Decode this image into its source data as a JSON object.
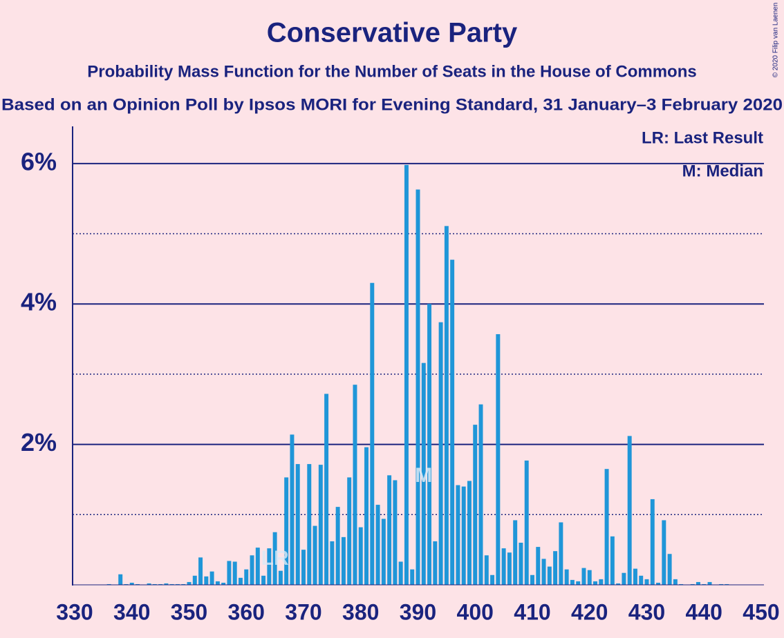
{
  "chart_data": {
    "type": "bar",
    "title": "Conservative Party",
    "subtitle": "Probability Mass Function for the Number of Seats in the House of Commons",
    "subtitle2": "Based on an Opinion Poll by Ipsos MORI for Evening Standard, 31 January–3 February 2020",
    "credit": "© 2020 Filip van Laenen",
    "legend": [
      "LR: Last Result",
      "M: Median"
    ],
    "last_result": {
      "x": 365,
      "label": "LR"
    },
    "median": {
      "x": 391,
      "label": "M"
    },
    "color": "#1f96d8",
    "x": [
      330,
      331,
      332,
      333,
      334,
      335,
      336,
      337,
      338,
      339,
      340,
      341,
      342,
      343,
      344,
      345,
      346,
      347,
      348,
      349,
      350,
      351,
      352,
      353,
      354,
      355,
      356,
      357,
      358,
      359,
      360,
      361,
      362,
      363,
      364,
      365,
      366,
      367,
      368,
      369,
      370,
      371,
      372,
      373,
      374,
      375,
      376,
      377,
      378,
      379,
      380,
      381,
      382,
      383,
      384,
      385,
      386,
      387,
      388,
      389,
      390,
      391,
      392,
      393,
      394,
      395,
      396,
      397,
      398,
      399,
      400,
      401,
      402,
      403,
      404,
      405,
      406,
      407,
      408,
      409,
      410,
      411,
      412,
      413,
      414,
      415,
      416,
      417,
      418,
      419,
      420,
      421,
      422,
      423,
      424,
      425,
      426,
      427,
      428,
      429,
      430,
      431,
      432,
      433,
      434,
      435,
      436,
      437,
      438,
      439,
      440,
      441,
      442,
      443,
      444,
      445,
      446,
      447,
      448,
      449,
      450
    ],
    "values": [
      0,
      0,
      0,
      0,
      0,
      0,
      0.01,
      0,
      0.15,
      0.01,
      0.03,
      0.01,
      0,
      0.02,
      0.01,
      0.01,
      0.02,
      0.01,
      0.01,
      0.01,
      0.04,
      0.13,
      0.39,
      0.12,
      0.19,
      0.05,
      0.03,
      0.34,
      0.33,
      0.1,
      0.22,
      0.42,
      0.53,
      0.13,
      0.52,
      0.75,
      0.2,
      1.53,
      2.14,
      1.72,
      0.5,
      1.72,
      0.84,
      1.71,
      2.72,
      0.62,
      1.11,
      0.68,
      1.53,
      2.85,
      0.82,
      1.96,
      4.3,
      1.14,
      0.94,
      1.56,
      1.49,
      0.33,
      5.98,
      0.22,
      5.63,
      3.16,
      4.0,
      0.62,
      3.74,
      5.11,
      4.63,
      1.42,
      1.4,
      1.48,
      2.28,
      2.57,
      0.42,
      0.14,
      3.57,
      0.52,
      0.46,
      0.92,
      0.6,
      1.77,
      0.14,
      0.54,
      0.37,
      0.26,
      0.48,
      0.89,
      0.22,
      0.07,
      0.05,
      0.24,
      0.21,
      0.05,
      0.08,
      1.65,
      0.69,
      0.02,
      0.17,
      2.12,
      0.23,
      0.13,
      0.08,
      1.22,
      0.03,
      0.92,
      0.44,
      0.08,
      0.01,
      0,
      0.01,
      0.04,
      0.01,
      0.04,
      0,
      0.01,
      0.01,
      0,
      0,
      0,
      0,
      0,
      0
    ],
    "xlim": [
      330,
      450
    ],
    "ylim": [
      0,
      6.5
    ],
    "xticks": [
      330,
      340,
      350,
      360,
      370,
      380,
      390,
      400,
      410,
      420,
      430,
      440,
      450
    ],
    "yticks": [
      {
        "value": 2,
        "label": "2%"
      },
      {
        "value": 4,
        "label": "4%"
      },
      {
        "value": 6,
        "label": "6%"
      }
    ],
    "minor_yticks": [
      1,
      3,
      5
    ],
    "grid": true
  }
}
